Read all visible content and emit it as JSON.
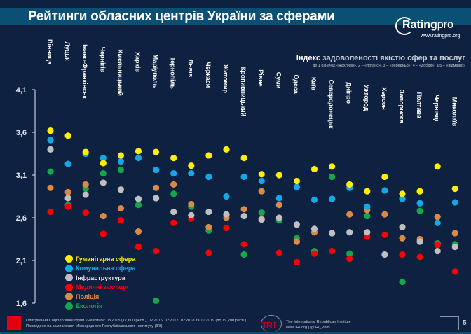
{
  "header": {
    "title": "Рейтинги обласних центрів України за сферами",
    "logo_name": "Rating",
    "logo_suffix": "pro",
    "logo_url": "www.ratingpro.org"
  },
  "subtitle": {
    "bold": "Індекс",
    "rest": " задоволеності якістю сфер та послуг",
    "note": "де 1 означає «жахливо», 2 – «погано», 3 – «середньо», 4 – «добре», а 5 – «відмінно»"
  },
  "footer": {
    "source_line1": "Опитування Соціологічної групи «Рейтинг»: 03'2015 (17,600 респ.), 02'2016, 02'2017, 02'2018 та 10'2019 (по 19,200 респ.).",
    "source_line2": "Проведене на замовлення Міжнародного Республіканського Інституту (IRI)",
    "iri_label": "IRI",
    "iri_line1": "The International Republican Institute",
    "iri_line2": "www.IRI.org | @IRI_Polls",
    "page_number": "5",
    "rating_logo_label": "Рейтинг"
  },
  "chart_data": {
    "type": "scatter",
    "title": "Рейтинги обласних центрів України за сферами",
    "xlabel": "",
    "ylabel": "Індекс задоволеності якістю сфер та послуг",
    "ylim": [
      1.6,
      4.1
    ],
    "yticks": [
      "4,1",
      "3,6",
      "3,1",
      "2,6",
      "2,1",
      "1,6"
    ],
    "ytick_values": [
      4.1,
      3.6,
      3.1,
      2.6,
      2.1,
      1.6
    ],
    "grid": false,
    "legend_position": "bottom-left",
    "categories": [
      "Вінниця",
      "Луцьк",
      "Івано-Франківськ",
      "Чернігів",
      "Хмельницький",
      "Харків",
      "Маріуполь",
      "Тернопіль",
      "Львів",
      "Черкаси",
      "Житомир",
      "Кропивницький",
      "Рівне",
      "Суми",
      "Одеса",
      "Київ",
      "Северодонецьк",
      "Дніпро",
      "Ужгород",
      "Херсон",
      "Запоріжжя",
      "Полтава",
      "Чернівці",
      "Миколаїв"
    ],
    "series": [
      {
        "name": "Гуманітарна сфера",
        "color": "#ffef00",
        "values": [
          3.62,
          3.56,
          3.37,
          3.24,
          3.33,
          3.38,
          3.37,
          3.3,
          3.21,
          3.33,
          3.4,
          3.3,
          3.11,
          3.1,
          3.03,
          3.17,
          3.2,
          2.99,
          2.91,
          3.08,
          2.88,
          2.91,
          3.2,
          2.94
        ]
      },
      {
        "name": "Комунальна сфера",
        "color": "#14a8e8",
        "values": [
          3.51,
          3.23,
          3.35,
          3.3,
          3.26,
          3.3,
          3.16,
          3.12,
          3.12,
          3.08,
          2.85,
          3.08,
          3.03,
          2.83,
          2.96,
          2.81,
          2.82,
          2.95,
          2.73,
          2.92,
          2.82,
          2.77,
          2.54,
          2.78
        ]
      },
      {
        "name": "Інфраструктура",
        "color": "#c0c0c0",
        "values": [
          3.4,
          2.83,
          2.87,
          3.01,
          2.93,
          2.82,
          2.83,
          2.67,
          2.63,
          2.67,
          2.64,
          2.62,
          2.58,
          2.6,
          2.52,
          2.47,
          2.42,
          2.43,
          2.43,
          2.17,
          2.49,
          2.32,
          2.21,
          2.26
        ]
      },
      {
        "name": "Медичні заклади",
        "color": "#ff0000",
        "values": [
          2.67,
          2.73,
          2.66,
          2.41,
          2.57,
          2.26,
          2.21,
          2.54,
          2.59,
          2.19,
          2.48,
          2.29,
          2.59,
          2.19,
          2.08,
          2.18,
          2.21,
          2.12,
          2.38,
          2.4,
          2.17,
          2.14,
          2.28,
          1.97
        ]
      },
      {
        "name": "Поліція",
        "color": "#da8a45",
        "values": [
          2.95,
          2.9,
          2.99,
          2.62,
          2.71,
          2.44,
          2.95,
          2.99,
          2.76,
          2.49,
          2.6,
          2.7,
          2.91,
          2.75,
          2.32,
          2.43,
          2.82,
          2.64,
          2.69,
          2.64,
          2.36,
          2.35,
          2.61,
          2.42
        ]
      },
      {
        "name": "Екологія",
        "color": "#13a84a",
        "values": [
          3.14,
          2.75,
          2.94,
          3.12,
          3.16,
          2.75,
          1.63,
          2.88,
          2.73,
          2.45,
          2.63,
          2.17,
          2.66,
          2.57,
          2.36,
          2.21,
          3.08,
          2.18,
          2.62,
          null,
          1.85,
          2.68,
          2.3,
          2.29
        ]
      }
    ]
  }
}
